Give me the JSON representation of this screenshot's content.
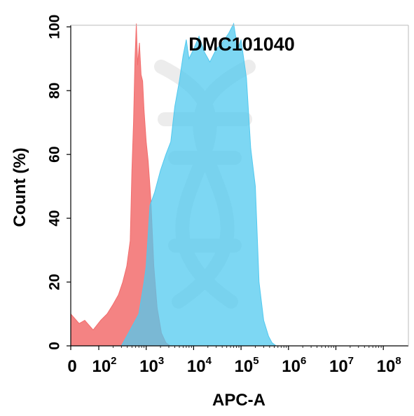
{
  "chart_data": {
    "type": "area",
    "title": "DMC101040",
    "xlabel": "APC-A",
    "ylabel": "Count  (%)",
    "x_scale": "biexponential",
    "ylim": [
      0,
      100
    ],
    "y_ticks": [
      0,
      20,
      40,
      60,
      80,
      100
    ],
    "x_ticks": [
      {
        "base": "0",
        "exp": ""
      },
      {
        "base": "10",
        "exp": "2"
      },
      {
        "base": "10",
        "exp": "3"
      },
      {
        "base": "10",
        "exp": "4"
      },
      {
        "base": "10",
        "exp": "5"
      },
      {
        "base": "10",
        "exp": "6"
      },
      {
        "base": "10",
        "exp": "7"
      },
      {
        "base": "10",
        "exp": "8"
      }
    ],
    "grid": false,
    "watermark": "dna-helix-icon",
    "series": [
      {
        "color": "#f26d6d",
        "fill_opacity": 0.85,
        "points": [
          [
            0,
            10
          ],
          [
            30,
            7
          ],
          [
            50,
            8
          ],
          [
            80,
            5
          ],
          [
            110,
            8
          ],
          [
            150,
            10
          ],
          [
            200,
            13
          ],
          [
            260,
            16
          ],
          [
            320,
            20
          ],
          [
            390,
            25
          ],
          [
            460,
            33
          ],
          [
            500,
            55
          ],
          [
            540,
            70
          ],
          [
            580,
            90
          ],
          [
            620,
            101
          ],
          [
            660,
            88
          ],
          [
            720,
            95
          ],
          [
            780,
            85
          ],
          [
            840,
            83
          ],
          [
            900,
            74
          ],
          [
            1000,
            64
          ],
          [
            1100,
            58
          ],
          [
            1250,
            46
          ],
          [
            1450,
            25
          ],
          [
            1700,
            12
          ],
          [
            2100,
            4
          ],
          [
            2600,
            1
          ],
          [
            3200,
            0
          ],
          [
            4000,
            0
          ],
          [
            5000,
            0
          ]
        ]
      },
      {
        "color": "#52c9ef",
        "fill_opacity": 0.75,
        "points": [
          [
            300,
            0
          ],
          [
            500,
            6
          ],
          [
            700,
            10
          ],
          [
            900,
            20
          ],
          [
            1000,
            25
          ],
          [
            1200,
            44
          ],
          [
            1500,
            48
          ],
          [
            2000,
            55
          ],
          [
            2600,
            60
          ],
          [
            3300,
            64
          ],
          [
            4000,
            75
          ],
          [
            5000,
            83
          ],
          [
            6000,
            91
          ],
          [
            7000,
            96
          ],
          [
            8000,
            90
          ],
          [
            10000,
            93
          ],
          [
            13000,
            97
          ],
          [
            17000,
            92
          ],
          [
            22000,
            89
          ],
          [
            30000,
            93
          ],
          [
            40000,
            95
          ],
          [
            55000,
            98
          ],
          [
            70000,
            101
          ],
          [
            85000,
            93
          ],
          [
            100000,
            96
          ],
          [
            130000,
            84
          ],
          [
            160000,
            62
          ],
          [
            200000,
            50
          ],
          [
            240000,
            20
          ],
          [
            300000,
            8
          ],
          [
            380000,
            3
          ],
          [
            450000,
            1
          ],
          [
            550000,
            0
          ]
        ]
      }
    ]
  }
}
